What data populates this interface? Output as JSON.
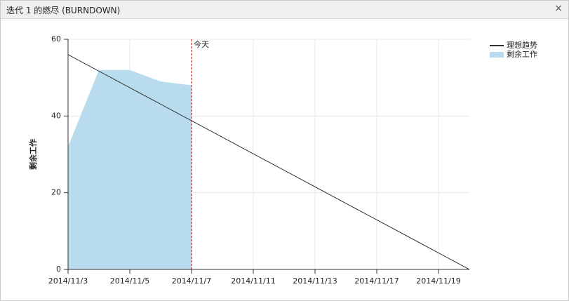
{
  "window": {
    "close": "×"
  },
  "chart_data": {
    "type": "burndown",
    "title": "迭代 1 的燃尽 (BURNDOWN)",
    "y_label": "剩余工作",
    "categories": [
      "2014/11/3",
      null,
      "2014/11/5",
      null,
      "2014/11/7",
      null,
      "2014/11/11",
      null,
      "2014/11/13",
      null,
      "2014/11/17",
      null,
      "2014/11/19",
      null
    ],
    "series": [
      {
        "name": "理想趋势",
        "kind": "line",
        "color": "#333333",
        "values": [
          56,
          51.69,
          47.38,
          43.08,
          38.77,
          34.46,
          30.15,
          25.85,
          21.54,
          17.23,
          12.92,
          8.62,
          4.31,
          0
        ]
      },
      {
        "name": "剩余工作",
        "kind": "area",
        "color": "#b8dcee",
        "values": [
          32,
          52,
          52,
          49,
          48,
          null,
          null,
          null,
          null,
          null,
          null,
          null,
          null,
          null
        ]
      }
    ],
    "annotation": {
      "text": "今天",
      "x": "2014/11/7",
      "color": "#cc0000"
    },
    "ylim": [
      0,
      60
    ],
    "yticks": [
      0,
      20,
      40,
      60
    ],
    "grid": true,
    "legend": "top-right"
  }
}
